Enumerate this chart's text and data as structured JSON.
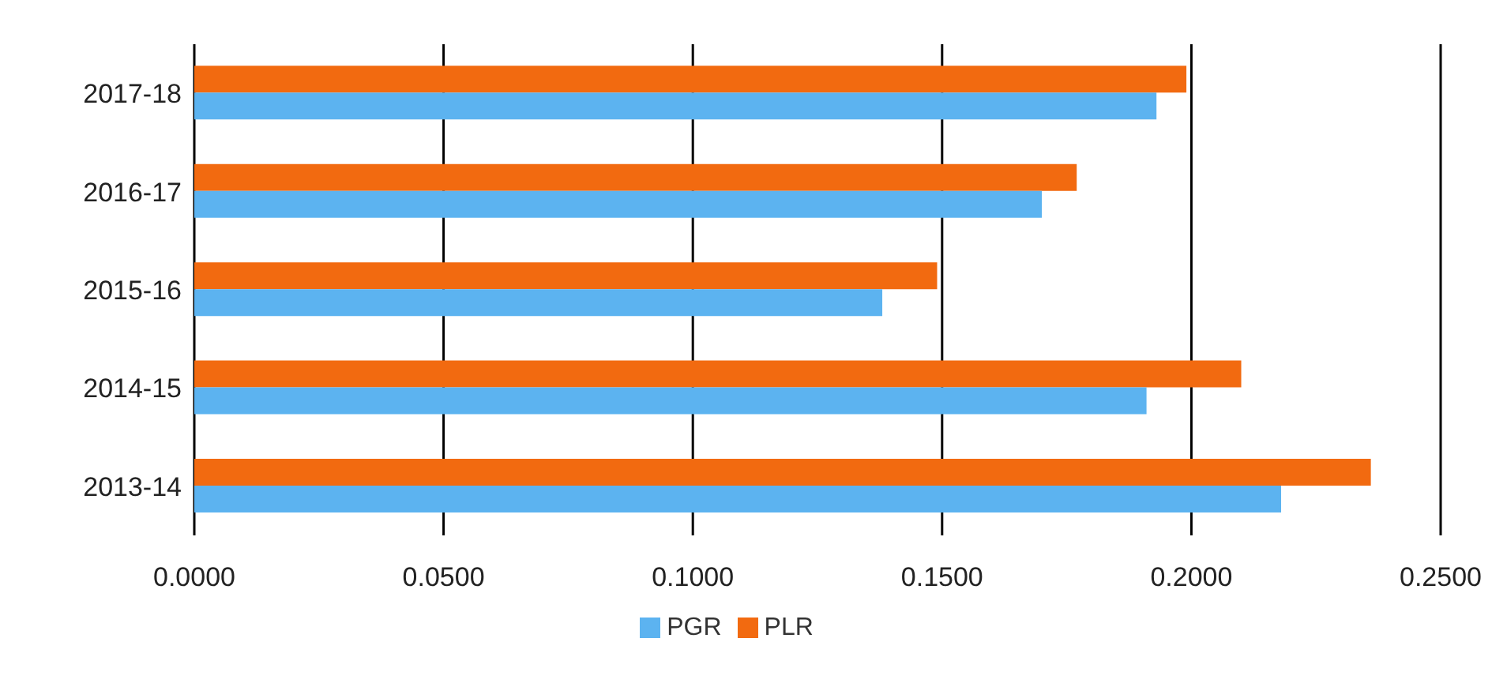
{
  "chart_data": {
    "type": "bar",
    "orientation": "horizontal",
    "categories": [
      "2017-18",
      "2016-17",
      "2015-16",
      "2014-15",
      "2013-14"
    ],
    "series": [
      {
        "name": "PLR",
        "color": "#f26a10",
        "values": [
          0.199,
          0.177,
          0.149,
          0.21,
          0.236
        ]
      },
      {
        "name": "PGR",
        "color": "#5cb3f0",
        "values": [
          0.193,
          0.17,
          0.138,
          0.191,
          0.218
        ]
      }
    ],
    "xlim": [
      0,
      0.25
    ],
    "xticks": [
      {
        "value": 0,
        "label": "0.0000"
      },
      {
        "value": 0.05,
        "label": "0.0500"
      },
      {
        "value": 0.1,
        "label": "0.1000"
      },
      {
        "value": 0.15,
        "label": "0.1500"
      },
      {
        "value": 0.2,
        "label": "0.2000"
      },
      {
        "value": 0.25,
        "label": "0.2500"
      }
    ],
    "grid": "x",
    "legend": "bottom"
  }
}
